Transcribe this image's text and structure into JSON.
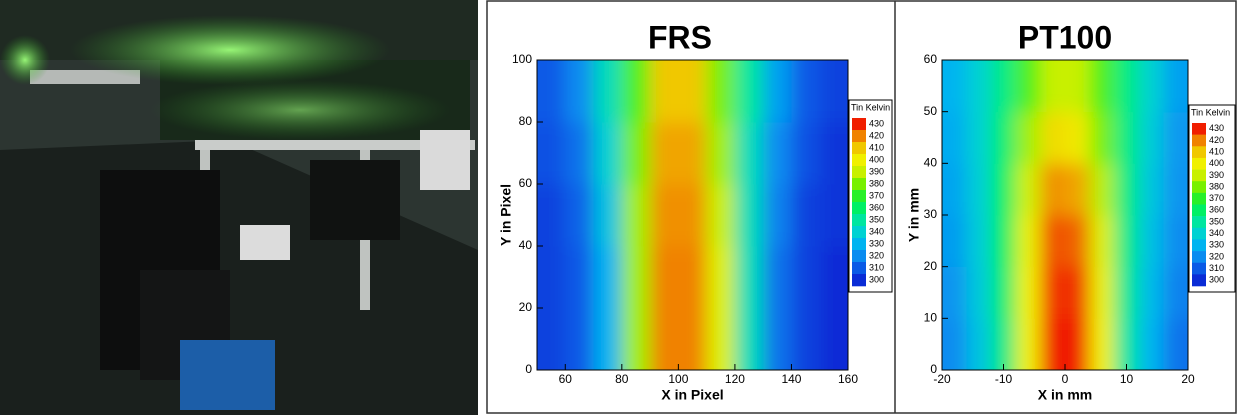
{
  "chart_data": [
    {
      "type": "heatmap",
      "title": "FRS",
      "x_label": "X in Pixel",
      "y_label": "Y in Pixel",
      "xlim": [
        50,
        160
      ],
      "ylim": [
        0,
        100
      ],
      "xticks": [
        60,
        80,
        100,
        120,
        140,
        160
      ],
      "yticks": [
        0,
        20,
        40,
        60,
        80,
        100
      ],
      "x": [
        55,
        65,
        75,
        85,
        95,
        105,
        115,
        125,
        135,
        145,
        155
      ],
      "y": [
        10,
        30,
        50,
        70,
        90
      ],
      "z": [
        [
          305,
          310,
          330,
          385,
          420,
          420,
          395,
          345,
          315,
          305,
          300
        ],
        [
          305,
          310,
          330,
          385,
          420,
          420,
          395,
          345,
          315,
          305,
          300
        ],
        [
          305,
          312,
          335,
          385,
          418,
          418,
          390,
          345,
          318,
          305,
          302
        ],
        [
          308,
          315,
          340,
          380,
          415,
          415,
          385,
          345,
          320,
          308,
          302
        ],
        [
          310,
          320,
          345,
          375,
          410,
          410,
          380,
          350,
          325,
          310,
          305
        ]
      ],
      "colorbar": {
        "title": "Tin Kelvin",
        "levels": [
          300,
          310,
          320,
          330,
          340,
          350,
          360,
          370,
          380,
          390,
          400,
          410,
          420,
          430
        ],
        "colors": [
          "#0a2cd6",
          "#0a5ae6",
          "#0a8cf0",
          "#00b4f0",
          "#00d2d2",
          "#00e6a0",
          "#00f064",
          "#28f028",
          "#78f000",
          "#c8f000",
          "#f0f000",
          "#f0c800",
          "#f08200",
          "#f01e00"
        ]
      }
    },
    {
      "type": "heatmap",
      "title": "PT100",
      "x_label": "X in mm",
      "y_label": "Y in mm",
      "xlim": [
        -20,
        20
      ],
      "ylim": [
        0,
        60
      ],
      "xticks": [
        -20,
        -10,
        0,
        10,
        20
      ],
      "yticks": [
        0,
        10,
        20,
        30,
        40,
        50,
        60
      ],
      "x": [
        -18,
        -14,
        -10,
        -6,
        -2,
        2,
        6,
        10,
        14,
        18
      ],
      "y": [
        5,
        15,
        25,
        35,
        45,
        55
      ],
      "z": [
        [
          320,
          335,
          355,
          400,
          430,
          430,
          400,
          350,
          330,
          315
        ],
        [
          322,
          337,
          358,
          400,
          428,
          428,
          398,
          352,
          332,
          318
        ],
        [
          324,
          338,
          360,
          398,
          425,
          423,
          395,
          354,
          334,
          320
        ],
        [
          326,
          339,
          360,
          392,
          418,
          415,
          388,
          355,
          336,
          322
        ],
        [
          328,
          340,
          358,
          385,
          405,
          402,
          380,
          355,
          338,
          323
        ],
        [
          330,
          340,
          355,
          375,
          390,
          390,
          375,
          355,
          340,
          325
        ]
      ],
      "colorbar": {
        "title": "Tin Kelvin",
        "levels": [
          300,
          310,
          320,
          330,
          340,
          350,
          360,
          370,
          380,
          390,
          400,
          410,
          420,
          430
        ],
        "colors": [
          "#0a2cd6",
          "#0a5ae6",
          "#0a8cf0",
          "#00b4f0",
          "#00d2d2",
          "#00e6a0",
          "#00f064",
          "#28f028",
          "#78f000",
          "#c8f000",
          "#f0f000",
          "#f0c800",
          "#f08200",
          "#f01e00"
        ]
      }
    }
  ]
}
